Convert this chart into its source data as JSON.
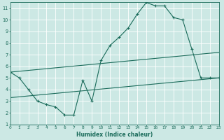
{
  "xlabel": "Humidex (Indice chaleur)",
  "xlim": [
    0,
    23
  ],
  "ylim": [
    1,
    11.5
  ],
  "xticks": [
    0,
    1,
    2,
    3,
    4,
    5,
    6,
    7,
    8,
    9,
    10,
    11,
    12,
    13,
    14,
    15,
    16,
    17,
    18,
    19,
    20,
    21,
    22,
    23
  ],
  "yticks": [
    1,
    2,
    3,
    4,
    5,
    6,
    7,
    8,
    9,
    10,
    11
  ],
  "bg_color": "#cce8e4",
  "grid_color": "#b8d8d4",
  "line_color": "#1a6b5a",
  "main_x": [
    0,
    1,
    2,
    3,
    4,
    5,
    6,
    7,
    8,
    9,
    10,
    11,
    12,
    13,
    14,
    15,
    16,
    17,
    18,
    19,
    20,
    21,
    22,
    23
  ],
  "main_y": [
    5.5,
    5.0,
    4.0,
    3.0,
    2.7,
    2.5,
    1.8,
    1.8,
    4.8,
    3.0,
    6.5,
    7.8,
    8.5,
    9.3,
    10.5,
    11.5,
    11.2,
    11.2,
    10.2,
    10.0,
    7.5,
    5.0,
    5.0,
    5.0
  ],
  "upper_line_x": [
    0,
    23
  ],
  "upper_line_y": [
    5.5,
    7.2
  ],
  "lower_line_x": [
    0,
    23
  ],
  "lower_line_y": [
    3.3,
    5.0
  ]
}
